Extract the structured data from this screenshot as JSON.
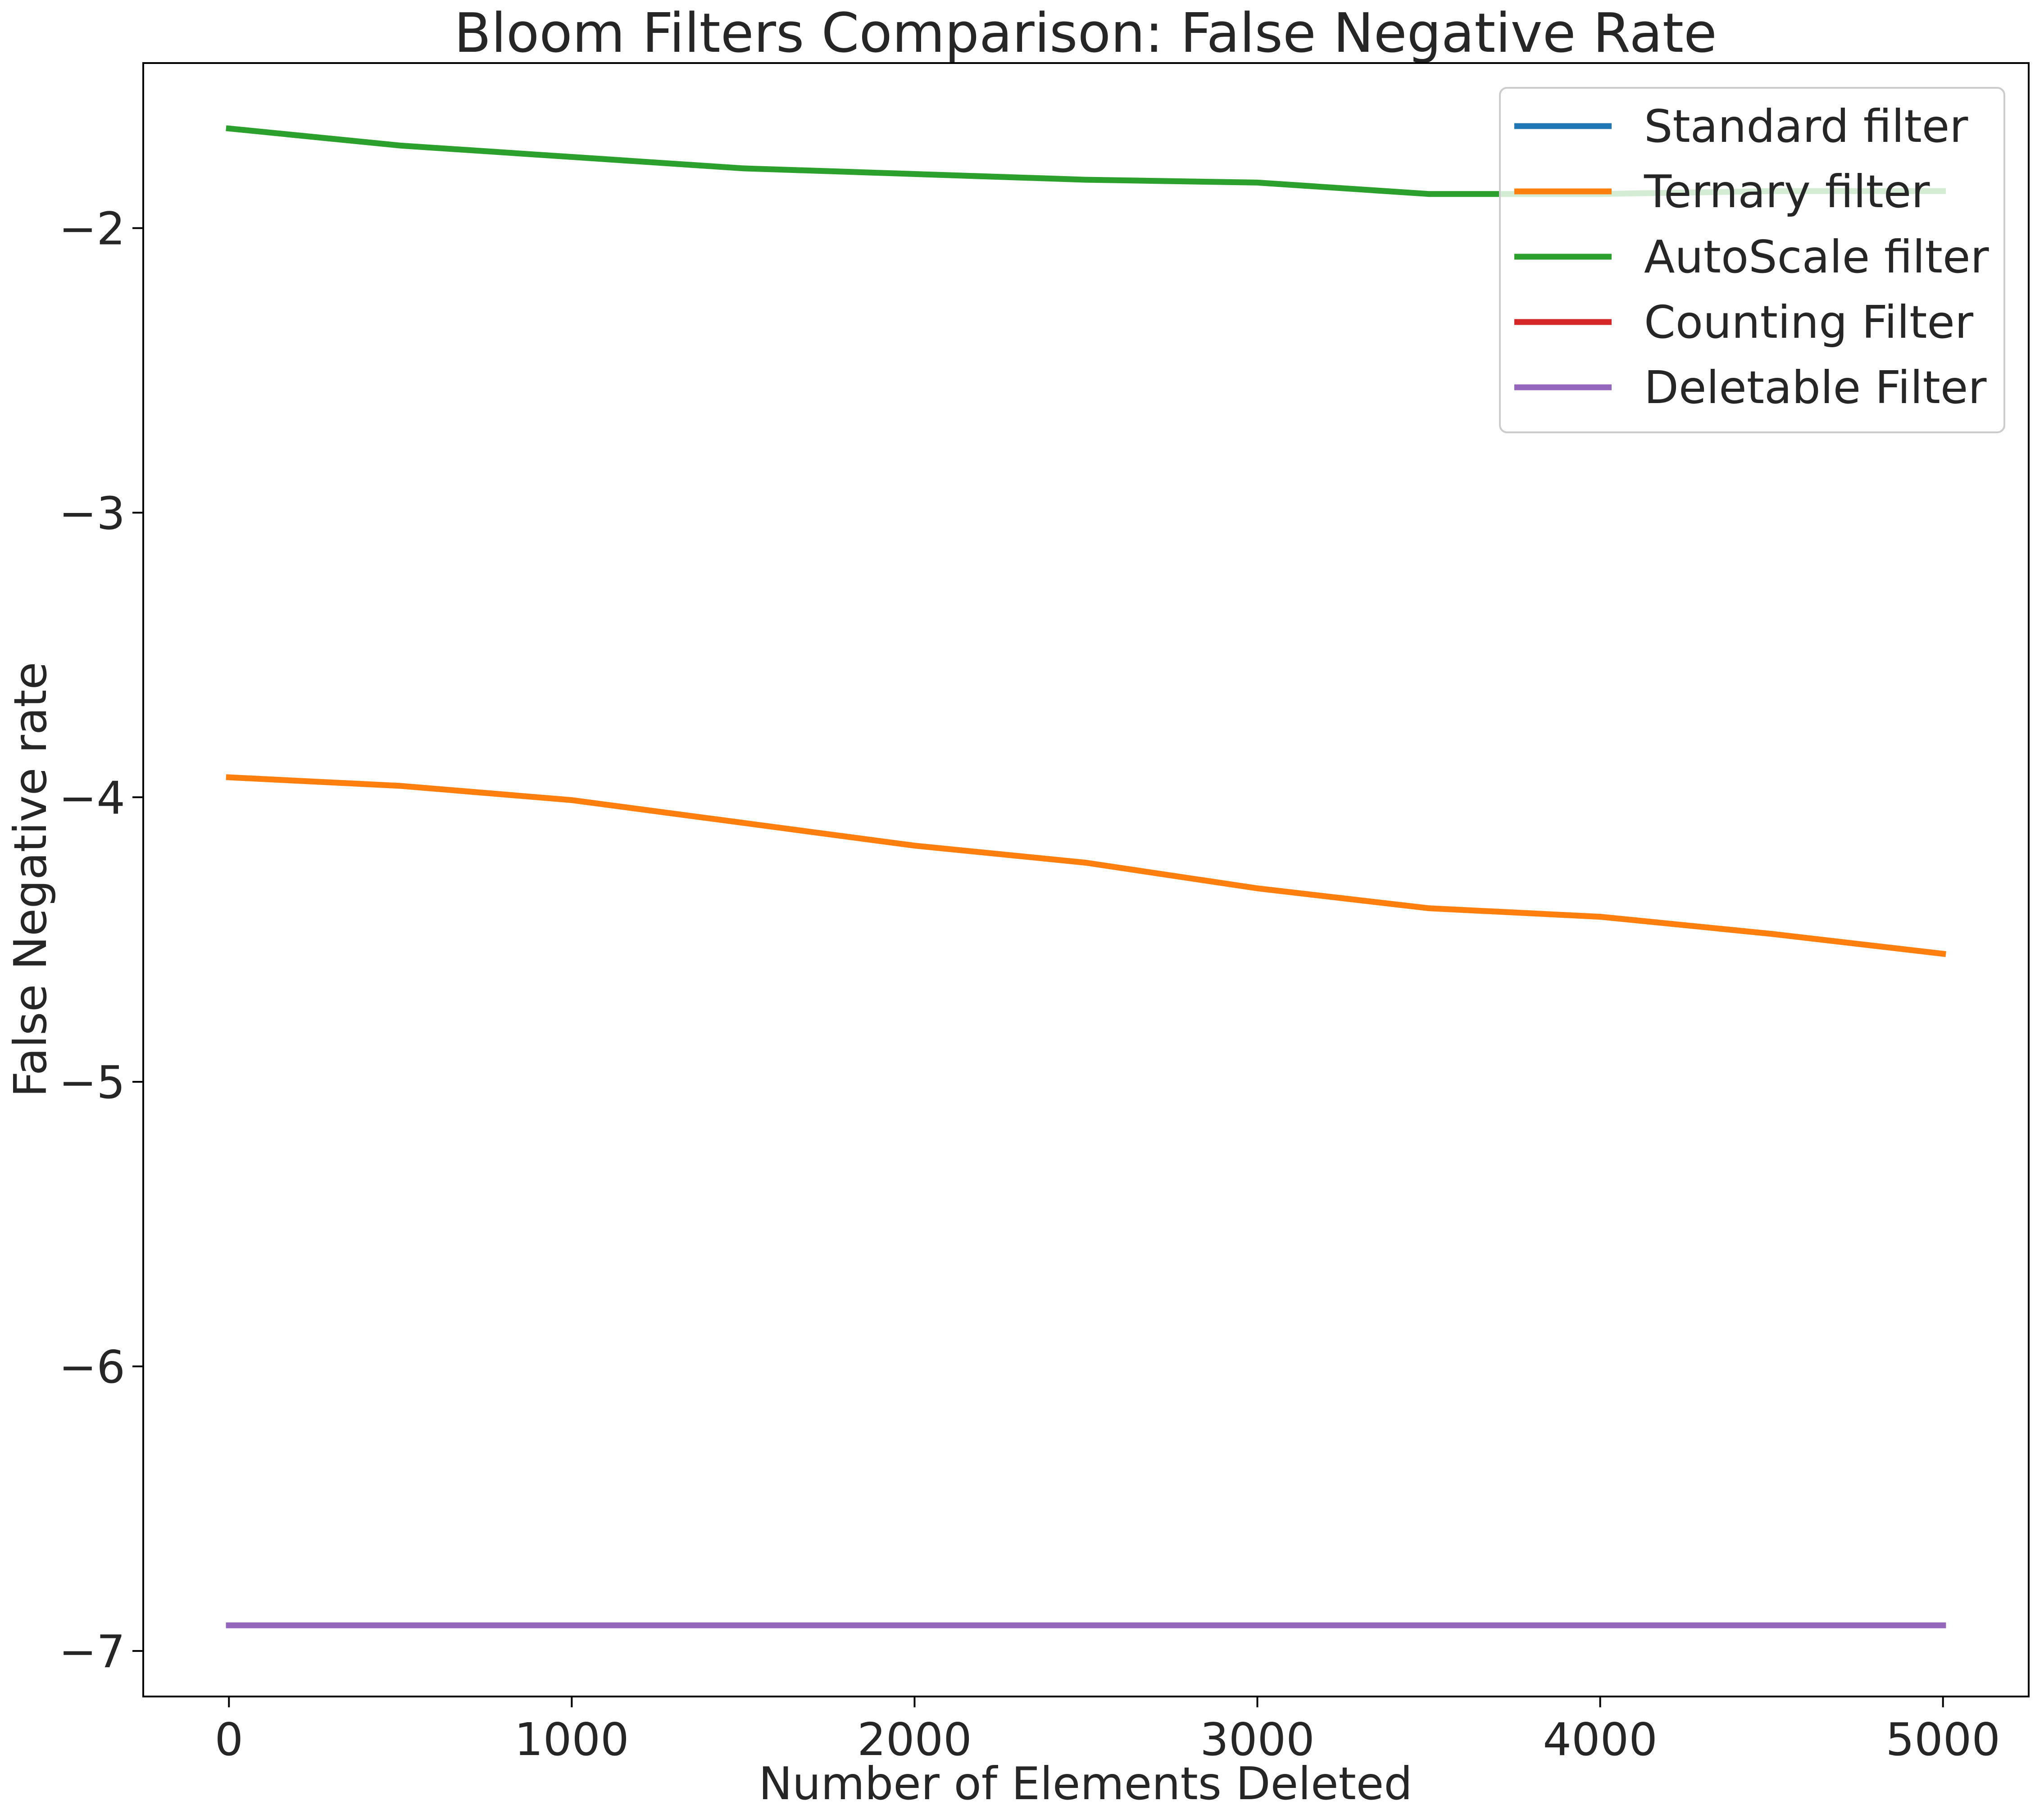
{
  "chart_data": {
    "type": "line",
    "title": "Bloom Filters Comparison: False Negative Rate",
    "xlabel": "Number of Elements Deleted",
    "ylabel": "False Negative rate",
    "xlim": [
      -250,
      5250
    ],
    "ylim": [
      -7.16,
      -1.42
    ],
    "xticks": [
      0,
      1000,
      2000,
      3000,
      4000,
      5000
    ],
    "xtick_labels": [
      "0",
      "1000",
      "2000",
      "3000",
      "4000",
      "5000"
    ],
    "yticks": [
      -7,
      -6,
      -5,
      -4,
      -3,
      -2
    ],
    "ytick_labels": [
      "−7",
      "−6",
      "−5",
      "−4",
      "−3",
      "−2"
    ],
    "grid": false,
    "legend_position": "top-right",
    "x": [
      0,
      500,
      1000,
      1500,
      2000,
      2500,
      3000,
      3500,
      4000,
      4500,
      5000
    ],
    "series": [
      {
        "name": "Standard filter",
        "color": "#1f77b4",
        "values": [
          -6.91,
          -6.91,
          -6.91,
          -6.91,
          -6.91,
          -6.91,
          -6.91,
          -6.91,
          -6.91,
          -6.91,
          -6.91
        ]
      },
      {
        "name": "Ternary filter",
        "color": "#ff7f0e",
        "values": [
          -3.93,
          -3.96,
          -4.01,
          -4.09,
          -4.17,
          -4.23,
          -4.32,
          -4.39,
          -4.42,
          -4.48,
          -4.55
        ]
      },
      {
        "name": "AutoScale filter",
        "color": "#2ca02c",
        "values": [
          -1.65,
          -1.71,
          -1.75,
          -1.79,
          -1.81,
          -1.83,
          -1.84,
          -1.88,
          -1.88,
          -1.87,
          -1.87
        ]
      },
      {
        "name": "Counting Filter",
        "color": "#d62728",
        "values": [
          -6.91,
          -6.91,
          -6.91,
          -6.91,
          -6.91,
          -6.91,
          -6.91,
          -6.91,
          -6.91,
          -6.91,
          -6.91
        ]
      },
      {
        "name": "Deletable Filter",
        "color": "#9467bd",
        "values": [
          -6.91,
          -6.91,
          -6.91,
          -6.91,
          -6.91,
          -6.91,
          -6.91,
          -6.91,
          -6.91,
          -6.91,
          -6.91
        ]
      }
    ]
  }
}
